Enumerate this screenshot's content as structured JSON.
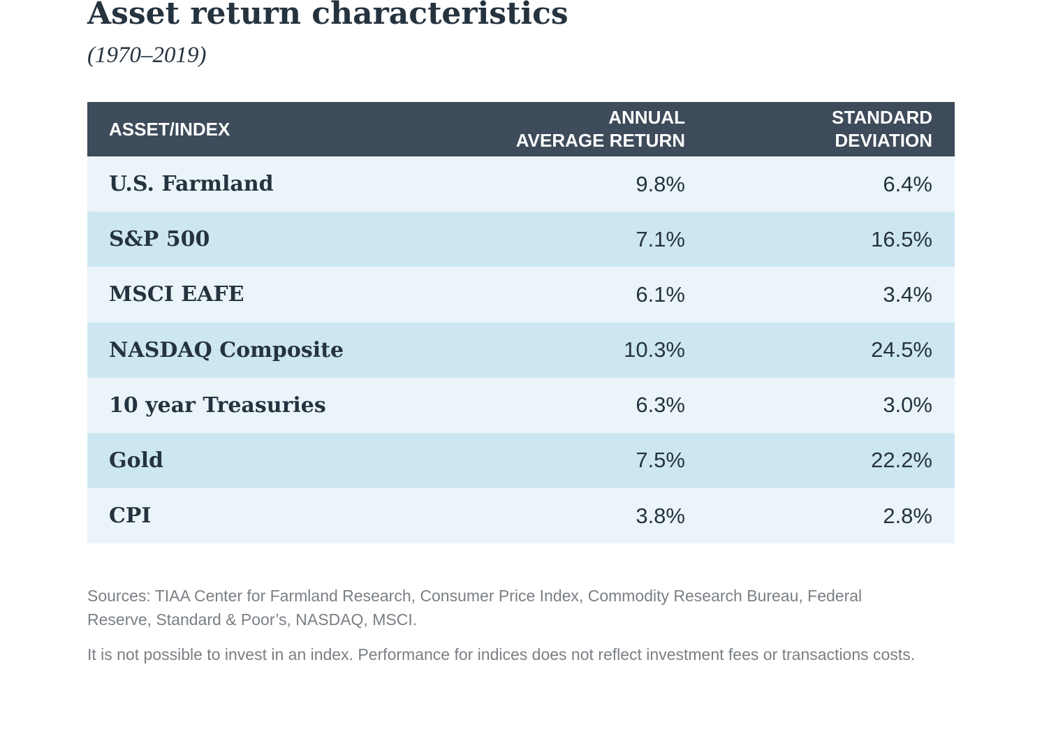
{
  "chart_data": {
    "type": "table",
    "title": "Asset return characteristics",
    "subtitle": "(1970–2019)",
    "columns": [
      {
        "label_lines": [
          "ASSET/INDEX"
        ]
      },
      {
        "label_lines": [
          "ANNUAL",
          "AVERAGE RETURN"
        ]
      },
      {
        "label_lines": [
          "STANDARD",
          "DEVIATION"
        ]
      }
    ],
    "rows": [
      {
        "asset": "U.S. Farmland",
        "annual_average_return": "9.8%",
        "standard_deviation": "6.4%"
      },
      {
        "asset": "S&P 500",
        "annual_average_return": "7.1%",
        "standard_deviation": "16.5%"
      },
      {
        "asset": "MSCI EAFE",
        "annual_average_return": "6.1%",
        "standard_deviation": "3.4%"
      },
      {
        "asset": "NASDAQ Composite",
        "annual_average_return": "10.3%",
        "standard_deviation": "24.5%"
      },
      {
        "asset": "10 year Treasuries",
        "annual_average_return": "6.3%",
        "standard_deviation": "3.0%"
      },
      {
        "asset": "Gold",
        "annual_average_return": "7.5%",
        "standard_deviation": "22.2%"
      },
      {
        "asset": "CPI",
        "annual_average_return": "3.8%",
        "standard_deviation": "2.8%"
      }
    ],
    "colors": {
      "header_bg": "#3d4b5a",
      "row_light": "#ebf5f9",
      "row_dark": "#cde7f2",
      "text": "#25333f",
      "note_text": "#7a7f84"
    }
  },
  "notes": {
    "sources": "Sources: TIAA Center for Farmland Research, Consumer Price Index, Commodity Research Bureau, Federal Reserve, Standard & Poor’s, NASDAQ, MSCI.",
    "disclaimer": "It is not possible to invest in an index. Performance for indices does not reflect investment fees or transactions costs."
  }
}
